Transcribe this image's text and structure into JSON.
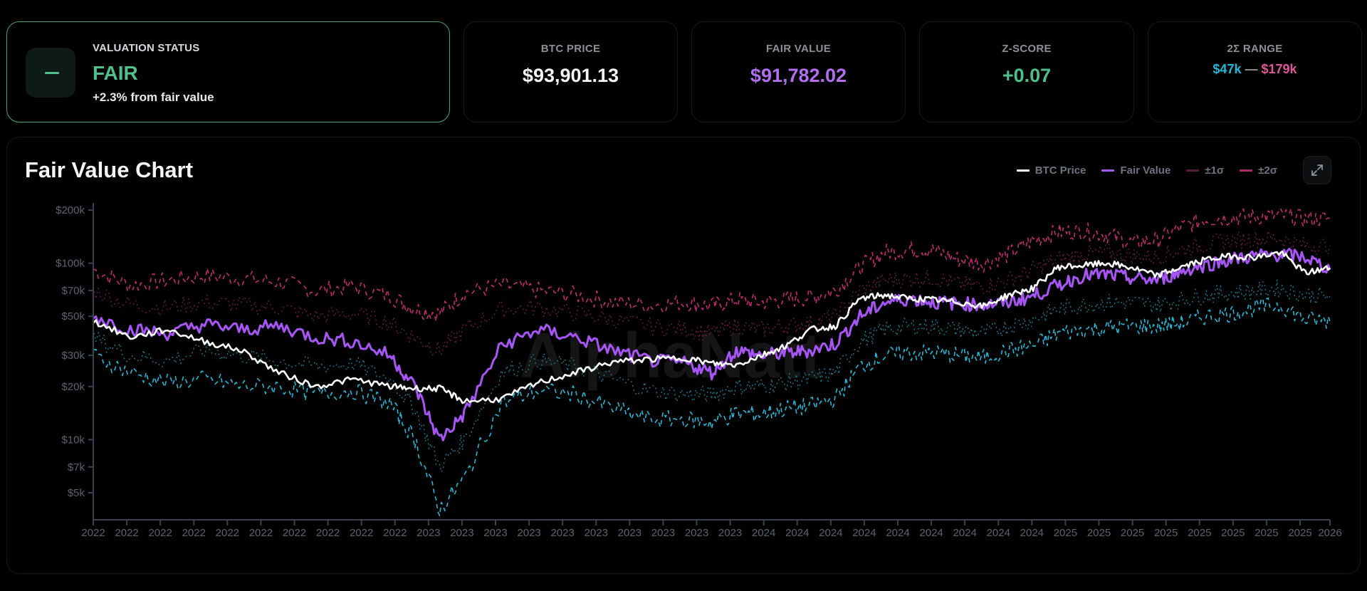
{
  "status_card": {
    "label": "VALUATION STATUS",
    "value": "FAIR",
    "subtitle": "+2.3% from fair value",
    "icon": "minus-icon",
    "color": "#4ec08a"
  },
  "metrics": [
    {
      "label": "BTC PRICE",
      "value": "$93,901.13",
      "color": "#f4f5f7"
    },
    {
      "label": "FAIR VALUE",
      "value": "$91,782.02",
      "color": "#b36ef0"
    },
    {
      "label": "Z-SCORE",
      "value": "+0.07",
      "color": "#4ec08a"
    }
  ],
  "range_card": {
    "label": "2Σ RANGE",
    "low": "$47k",
    "separator": "—",
    "high": "$179k",
    "low_color": "#22b8d6",
    "high_color": "#e0569a"
  },
  "chart_panel": {
    "title": "Fair Value Chart",
    "legend": [
      {
        "label": "BTC Price",
        "color": "#ffffff"
      },
      {
        "label": "Fair Value",
        "color": "#a855f7"
      },
      {
        "label": "±1σ",
        "color": "#6b1d45"
      },
      {
        "label": "±2σ",
        "color": "#c02a72"
      }
    ],
    "expand_icon": "expand-icon",
    "watermark": "AlphaNatt"
  },
  "chart_data": {
    "type": "line",
    "title": "Fair Value Chart",
    "xlabel": "",
    "ylabel": "",
    "yscale": "log",
    "ylim": [
      3500,
      220000
    ],
    "y_ticks": [
      {
        "label": "$200k",
        "value": 200000
      },
      {
        "label": "$100k",
        "value": 100000
      },
      {
        "label": "$70k",
        "value": 70000
      },
      {
        "label": "$50k",
        "value": 50000
      },
      {
        "label": "$30k",
        "value": 30000
      },
      {
        "label": "$20k",
        "value": 20000
      },
      {
        "label": "$10k",
        "value": 10000
      },
      {
        "label": "$7k",
        "value": 7000
      },
      {
        "label": "$5k",
        "value": 5000
      }
    ],
    "x_tick_labels": [
      "2022",
      "2022",
      "2022",
      "2022",
      "2022",
      "2022",
      "2022",
      "2022",
      "2022",
      "2022",
      "2023",
      "2023",
      "2023",
      "2023",
      "2023",
      "2023",
      "2023",
      "2023",
      "2023",
      "2023",
      "2024",
      "2024",
      "2024",
      "2024",
      "2024",
      "2024",
      "2024",
      "2024",
      "2024",
      "2025",
      "2025",
      "2025",
      "2025",
      "2025",
      "2025",
      "2025",
      "2025",
      "2026"
    ],
    "grid": false,
    "legend_position": "top-right",
    "x": [
      0,
      0.03,
      0.06,
      0.09,
      0.12,
      0.15,
      0.18,
      0.21,
      0.24,
      0.26,
      0.28,
      0.3,
      0.33,
      0.36,
      0.39,
      0.42,
      0.45,
      0.48,
      0.5,
      0.52,
      0.54,
      0.56,
      0.58,
      0.6,
      0.62,
      0.64,
      0.66,
      0.68,
      0.7,
      0.72,
      0.74,
      0.76,
      0.78,
      0.8,
      0.82,
      0.84,
      0.86,
      0.88,
      0.9,
      0.92,
      0.94,
      0.96,
      0.98,
      1.0
    ],
    "series": [
      {
        "name": "BTC Price",
        "color": "#ffffff",
        "values": [
          47000,
          38000,
          42000,
          36000,
          32000,
          24000,
          20000,
          22000,
          20000,
          19500,
          19500,
          16500,
          17000,
          21000,
          24000,
          27500,
          28500,
          29000,
          27000,
          26500,
          30000,
          34000,
          42000,
          44000,
          63000,
          66000,
          63000,
          62000,
          60000,
          57000,
          66000,
          72000,
          95000,
          97000,
          100000,
          94000,
          85000,
          95000,
          105000,
          110000,
          108000,
          115000,
          88000,
          93900
        ]
      },
      {
        "name": "Fair Value",
        "color": "#a855f7",
        "values": [
          50000,
          42000,
          40000,
          45000,
          42000,
          44000,
          38000,
          36000,
          30000,
          20000,
          10000,
          14000,
          34000,
          42000,
          38000,
          32000,
          28000,
          27000,
          24000,
          32000,
          30000,
          31000,
          32000,
          35000,
          50000,
          60000,
          63000,
          60000,
          59000,
          58000,
          60000,
          65000,
          75000,
          85000,
          86000,
          82000,
          80000,
          90000,
          98000,
          105000,
          110000,
          112000,
          108000,
          91782
        ]
      },
      {
        "name": "+2σ",
        "color": "#c02a72",
        "values": [
          92000,
          75000,
          80000,
          85000,
          82000,
          78000,
          70000,
          74000,
          65000,
          55000,
          52000,
          68000,
          75000,
          70000,
          66000,
          60000,
          58000,
          60000,
          57000,
          62000,
          60000,
          62000,
          64000,
          70000,
          95000,
          115000,
          120000,
          118000,
          105000,
          100000,
          112000,
          135000,
          150000,
          152000,
          145000,
          130000,
          135000,
          160000,
          178000,
          182000,
          184000,
          186000,
          178000,
          179000
        ]
      },
      {
        "name": "+1σ",
        "color": "#6b1d45",
        "values": [
          70000,
          58000,
          56000,
          60000,
          58000,
          56000,
          50000,
          52000,
          46000,
          38000,
          32000,
          42000,
          55000,
          56000,
          52000,
          48000,
          44000,
          42000,
          40000,
          44000,
          42000,
          44000,
          46000,
          50000,
          70000,
          80000,
          82000,
          82000,
          76000,
          74000,
          80000,
          92000,
          105000,
          112000,
          115000,
          110000,
          108000,
          120000,
          128000,
          135000,
          137000,
          138000,
          125000,
          126000
        ]
      },
      {
        "name": "-1σ",
        "color": "#177c8f",
        "values": [
          38000,
          30000,
          28000,
          32000,
          30000,
          28000,
          26000,
          27000,
          22000,
          15000,
          7000,
          10000,
          24000,
          28000,
          26000,
          22000,
          19000,
          18000,
          18000,
          20000,
          20000,
          21000,
          22000,
          24000,
          36000,
          42000,
          44000,
          44000,
          42000,
          40000,
          44000,
          48000,
          55000,
          58000,
          60000,
          60000,
          58000,
          62000,
          66000,
          68000,
          70000,
          72000,
          66000,
          65000
        ]
      },
      {
        "name": "-2σ",
        "color": "#22b8d6",
        "values": [
          30000,
          24000,
          21000,
          22000,
          20000,
          20000,
          18000,
          19000,
          16000,
          10000,
          4000,
          6000,
          16000,
          19000,
          18000,
          15000,
          13000,
          13000,
          12500,
          14000,
          14000,
          15000,
          15500,
          17000,
          26000,
          30000,
          31000,
          31000,
          30000,
          29000,
          32000,
          34000,
          40000,
          42000,
          43000,
          44000,
          44000,
          46000,
          50000,
          52000,
          56000,
          58000,
          48000,
          47000
        ]
      }
    ]
  }
}
